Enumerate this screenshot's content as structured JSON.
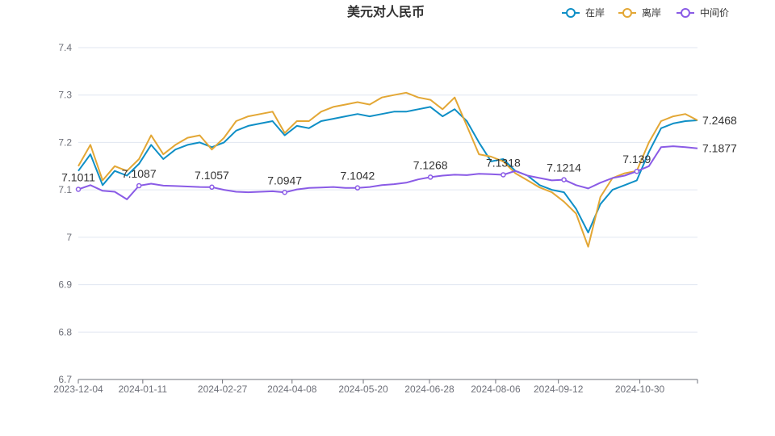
{
  "chart_data": {
    "type": "line",
    "title": "美元对人民币",
    "xlabel": "",
    "ylabel": "",
    "ylim": [
      6.7,
      7.4
    ],
    "yticks": [
      "6.7",
      "6.8",
      "6.9",
      "7",
      "7.1",
      "7.2",
      "7.3",
      "7.4"
    ],
    "xticks": [
      "2023-12-04",
      "2024-01-11",
      "2024-02-27",
      "2024-04-08",
      "2024-05-20",
      "2024-06-28",
      "2024-08-06",
      "2024-09-12",
      "2024-10-30"
    ],
    "x": [
      "2023-12-04",
      "2023-12-11",
      "2023-12-18",
      "2023-12-25",
      "2024-01-02",
      "2024-01-11",
      "2024-01-18",
      "2024-01-25",
      "2024-02-01",
      "2024-02-08",
      "2024-02-19",
      "2024-02-27",
      "2024-03-05",
      "2024-03-12",
      "2024-03-19",
      "2024-03-26",
      "2024-04-01",
      "2024-04-08",
      "2024-04-15",
      "2024-04-22",
      "2024-04-29",
      "2024-05-08",
      "2024-05-13",
      "2024-05-20",
      "2024-05-27",
      "2024-06-03",
      "2024-06-11",
      "2024-06-18",
      "2024-06-24",
      "2024-06-28",
      "2024-07-05",
      "2024-07-12",
      "2024-07-19",
      "2024-07-26",
      "2024-08-01",
      "2024-08-06",
      "2024-08-13",
      "2024-08-20",
      "2024-08-27",
      "2024-09-03",
      "2024-09-12",
      "2024-09-19",
      "2024-09-26",
      "2024-10-08",
      "2024-10-15",
      "2024-10-22",
      "2024-10-30",
      "2024-11-06",
      "2024-11-13",
      "2024-11-20",
      "2024-11-27",
      "2024-12-03"
    ],
    "legend": {
      "position": "top-right"
    },
    "grid": true,
    "series": [
      {
        "name": "在岸",
        "color": "#0f8fc6",
        "values": [
          7.14,
          7.175,
          7.11,
          7.14,
          7.13,
          7.155,
          7.195,
          7.165,
          7.185,
          7.195,
          7.2,
          7.19,
          7.2,
          7.225,
          7.235,
          7.24,
          7.245,
          7.215,
          7.235,
          7.23,
          7.245,
          7.25,
          7.255,
          7.26,
          7.255,
          7.26,
          7.265,
          7.265,
          7.27,
          7.275,
          7.255,
          7.27,
          7.245,
          7.2,
          7.16,
          7.165,
          7.14,
          7.13,
          7.11,
          7.1,
          7.095,
          7.06,
          7.01,
          7.07,
          7.1,
          7.11,
          7.12,
          7.18,
          7.23,
          7.24,
          7.245,
          7.2468
        ]
      },
      {
        "name": "离岸",
        "color": "#e3a735",
        "values": [
          7.15,
          7.195,
          7.12,
          7.15,
          7.14,
          7.165,
          7.215,
          7.175,
          7.195,
          7.21,
          7.215,
          7.185,
          7.21,
          7.245,
          7.255,
          7.26,
          7.265,
          7.22,
          7.245,
          7.245,
          7.265,
          7.275,
          7.28,
          7.285,
          7.28,
          7.295,
          7.3,
          7.305,
          7.295,
          7.29,
          7.27,
          7.295,
          7.235,
          7.175,
          7.17,
          7.16,
          7.135,
          7.12,
          7.105,
          7.095,
          7.075,
          7.05,
          6.98,
          7.085,
          7.125,
          7.135,
          7.14,
          7.2,
          7.245,
          7.255,
          7.26,
          7.2468
        ]
      },
      {
        "name": "中间价",
        "color": "#8a5be6",
        "values": [
          7.1011,
          7.11,
          7.098,
          7.096,
          7.08,
          7.1087,
          7.113,
          7.109,
          7.108,
          7.107,
          7.106,
          7.1057,
          7.1,
          7.096,
          7.095,
          7.096,
          7.097,
          7.0947,
          7.101,
          7.104,
          7.105,
          7.106,
          7.104,
          7.1042,
          7.106,
          7.11,
          7.112,
          7.115,
          7.122,
          7.1268,
          7.13,
          7.132,
          7.131,
          7.134,
          7.133,
          7.1318,
          7.14,
          7.13,
          7.125,
          7.12,
          7.1214,
          7.11,
          7.103,
          7.115,
          7.125,
          7.13,
          7.139,
          7.15,
          7.19,
          7.192,
          7.19,
          7.1877
        ]
      }
    ],
    "data_labels": [
      {
        "series": "中间价",
        "index": 0,
        "text": "7.1011"
      },
      {
        "series": "中间价",
        "index": 5,
        "text": "7.1087"
      },
      {
        "series": "中间价",
        "index": 11,
        "text": "7.1057"
      },
      {
        "series": "中间价",
        "index": 17,
        "text": "7.0947"
      },
      {
        "series": "中间价",
        "index": 23,
        "text": "7.1042"
      },
      {
        "series": "中间价",
        "index": 29,
        "text": "7.1268"
      },
      {
        "series": "中间价",
        "index": 35,
        "text": "7.1318"
      },
      {
        "series": "中间价",
        "index": 40,
        "text": "7.1214"
      },
      {
        "series": "中间价",
        "index": 46,
        "text": "7.139"
      }
    ],
    "end_labels": [
      {
        "series": "离岸",
        "text": "7.2468"
      },
      {
        "series": "中间价",
        "text": "7.1877"
      }
    ]
  }
}
